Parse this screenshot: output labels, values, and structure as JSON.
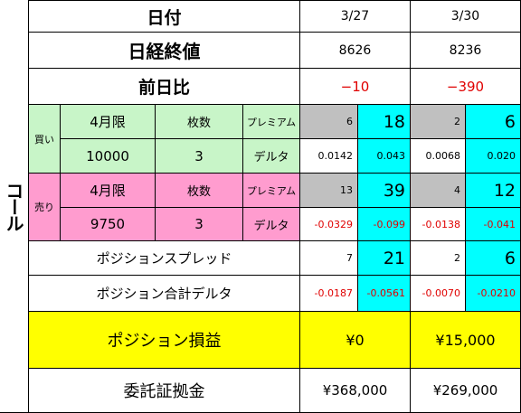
{
  "header": {
    "label": "日付",
    "dates": [
      "3/27",
      "3/30"
    ]
  },
  "nikkei": {
    "label": "日経終値",
    "values": [
      "8626",
      "8236"
    ]
  },
  "change": {
    "label": "前日比",
    "values": [
      "−10",
      "−390"
    ]
  },
  "side_label": "コール",
  "buy": {
    "label": "買い",
    "month": "4月限",
    "qty_label": "枚数",
    "premium_label": "プレミアム",
    "strike": "10000",
    "qty": "3",
    "delta_label": "デルタ",
    "d1": {
      "premium_left": "6",
      "premium_right": "18",
      "delta_left": "0.0142",
      "delta_right": "0.043"
    },
    "d2": {
      "premium_left": "2",
      "premium_right": "6",
      "delta_left": "0.0068",
      "delta_right": "0.020"
    }
  },
  "sell": {
    "label": "売り",
    "month": "4月限",
    "qty_label": "枚数",
    "premium_label": "プレミアム",
    "strike": "9750",
    "qty": "3",
    "delta_label": "デルタ",
    "d1": {
      "premium_left": "13",
      "premium_right": "39",
      "delta_left": "-0.0329",
      "delta_right": "-0.099"
    },
    "d2": {
      "premium_left": "4",
      "premium_right": "12",
      "delta_left": "-0.0138",
      "delta_right": "-0.041"
    }
  },
  "spread": {
    "label": "ポジションスプレッド",
    "d1": {
      "left": "7",
      "right": "21"
    },
    "d2": {
      "left": "2",
      "right": "6"
    }
  },
  "total_delta": {
    "label": "ポジション合計デルタ",
    "d1": {
      "left": "-0.0187",
      "right": "-0.0561"
    },
    "d2": {
      "left": "-0.0070",
      "right": "-0.0210"
    }
  },
  "pnl": {
    "label": "ポジション損益",
    "values": [
      "¥0",
      "¥15,000"
    ]
  },
  "margin": {
    "label": "委託証拠金",
    "values": [
      "¥368,000",
      "¥269,000"
    ]
  },
  "colors": {
    "buy_bg": "#c8f5c8",
    "sell_bg": "#ff9ccf",
    "highlight": "#00ffff",
    "premium_gray": "#c0c0c0",
    "pnl_bg": "#ffff00",
    "negative_text": "#e00000"
  }
}
